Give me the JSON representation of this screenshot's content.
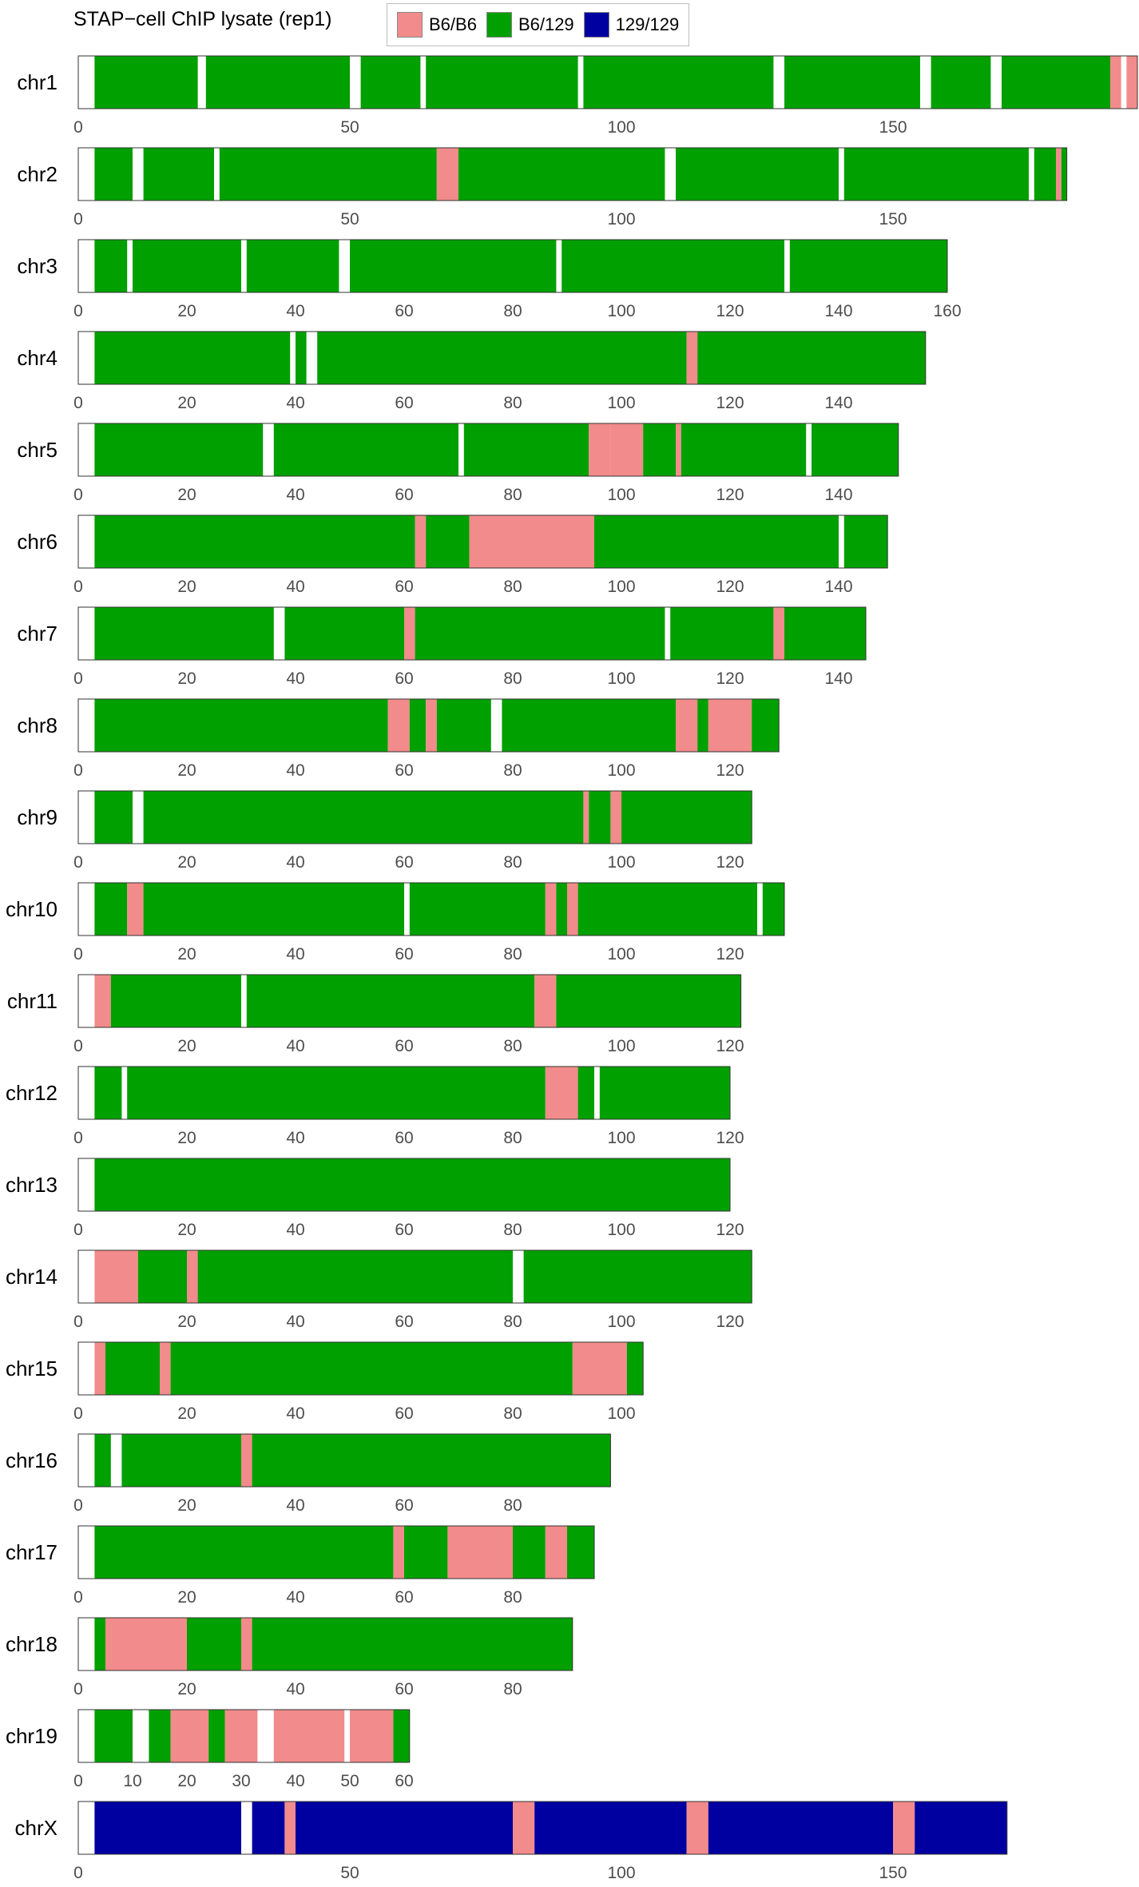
{
  "chart_data": {
    "type": "bar",
    "title": "STAP−cell ChIP lysate (rep1)",
    "legend": [
      {
        "name": "B6/B6",
        "color": "#f28b8b"
      },
      {
        "name": "B6/129",
        "color": "#00a000"
      },
      {
        "name": "129/129",
        "color": "#0000a0"
      }
    ],
    "chromosomes": [
      {
        "name": "chr1",
        "length": 195,
        "ticks": [
          0,
          50,
          100,
          150
        ],
        "segments": [
          [
            0,
            3,
            "none"
          ],
          [
            3,
            22,
            "green"
          ],
          [
            22,
            23.5,
            "none"
          ],
          [
            23.5,
            50,
            "green"
          ],
          [
            50,
            52,
            "none"
          ],
          [
            52,
            63,
            "green"
          ],
          [
            63,
            64,
            "none"
          ],
          [
            64,
            92,
            "green"
          ],
          [
            92,
            93,
            "none"
          ],
          [
            93,
            128,
            "green"
          ],
          [
            128,
            130,
            "none"
          ],
          [
            130,
            155,
            "green"
          ],
          [
            155,
            157,
            "none"
          ],
          [
            157,
            168,
            "green"
          ],
          [
            168,
            170,
            "none"
          ],
          [
            170,
            190,
            "green"
          ],
          [
            190,
            192,
            "pink"
          ],
          [
            192,
            193,
            "none"
          ],
          [
            193,
            195,
            "pink"
          ]
        ]
      },
      {
        "name": "chr2",
        "length": 182,
        "ticks": [
          0,
          50,
          100,
          150
        ],
        "segments": [
          [
            0,
            3,
            "none"
          ],
          [
            3,
            10,
            "green"
          ],
          [
            10,
            12,
            "none"
          ],
          [
            12,
            25,
            "green"
          ],
          [
            25,
            26,
            "none"
          ],
          [
            26,
            66,
            "green"
          ],
          [
            66,
            70,
            "pink"
          ],
          [
            70,
            108,
            "green"
          ],
          [
            108,
            110,
            "none"
          ],
          [
            110,
            140,
            "green"
          ],
          [
            140,
            141,
            "none"
          ],
          [
            141,
            175,
            "green"
          ],
          [
            175,
            176,
            "none"
          ],
          [
            176,
            180,
            "green"
          ],
          [
            180,
            181,
            "pink"
          ],
          [
            181,
            182,
            "green"
          ]
        ]
      },
      {
        "name": "chr3",
        "length": 160,
        "ticks": [
          0,
          20,
          40,
          60,
          80,
          100,
          120,
          140,
          160
        ],
        "segments": [
          [
            0,
            3,
            "none"
          ],
          [
            3,
            9,
            "green"
          ],
          [
            9,
            10,
            "none"
          ],
          [
            10,
            30,
            "green"
          ],
          [
            30,
            31,
            "none"
          ],
          [
            31,
            48,
            "green"
          ],
          [
            48,
            50,
            "none"
          ],
          [
            50,
            88,
            "green"
          ],
          [
            88,
            89,
            "none"
          ],
          [
            89,
            130,
            "green"
          ],
          [
            130,
            131,
            "none"
          ],
          [
            131,
            160,
            "green"
          ]
        ]
      },
      {
        "name": "chr4",
        "length": 156,
        "ticks": [
          0,
          20,
          40,
          60,
          80,
          100,
          120,
          140
        ],
        "segments": [
          [
            0,
            3,
            "none"
          ],
          [
            3,
            39,
            "green"
          ],
          [
            39,
            40,
            "none"
          ],
          [
            40,
            42,
            "green"
          ],
          [
            42,
            44,
            "none"
          ],
          [
            44,
            112,
            "green"
          ],
          [
            112,
            114,
            "pink"
          ],
          [
            114,
            156,
            "green"
          ]
        ]
      },
      {
        "name": "chr5",
        "length": 151,
        "ticks": [
          0,
          20,
          40,
          60,
          80,
          100,
          120,
          140
        ],
        "segments": [
          [
            0,
            3,
            "none"
          ],
          [
            3,
            34,
            "green"
          ],
          [
            34,
            36,
            "none"
          ],
          [
            36,
            70,
            "green"
          ],
          [
            70,
            71,
            "none"
          ],
          [
            71,
            94,
            "green"
          ],
          [
            94,
            98,
            "pink"
          ],
          [
            98,
            104,
            "pink"
          ],
          [
            104,
            110,
            "green"
          ],
          [
            110,
            111,
            "pink"
          ],
          [
            111,
            134,
            "green"
          ],
          [
            134,
            135,
            "none"
          ],
          [
            135,
            151,
            "green"
          ]
        ]
      },
      {
        "name": "chr6",
        "length": 149,
        "ticks": [
          0,
          20,
          40,
          60,
          80,
          100,
          120,
          140
        ],
        "segments": [
          [
            0,
            3,
            "none"
          ],
          [
            3,
            62,
            "green"
          ],
          [
            62,
            64,
            "pink"
          ],
          [
            64,
            72,
            "green"
          ],
          [
            72,
            95,
            "pink"
          ],
          [
            95,
            140,
            "green"
          ],
          [
            140,
            141,
            "none"
          ],
          [
            141,
            149,
            "green"
          ]
        ]
      },
      {
        "name": "chr7",
        "length": 145,
        "ticks": [
          0,
          20,
          40,
          60,
          80,
          100,
          120,
          140
        ],
        "segments": [
          [
            0,
            3,
            "none"
          ],
          [
            3,
            36,
            "green"
          ],
          [
            36,
            38,
            "none"
          ],
          [
            38,
            60,
            "green"
          ],
          [
            60,
            62,
            "pink"
          ],
          [
            62,
            108,
            "green"
          ],
          [
            108,
            109,
            "none"
          ],
          [
            109,
            128,
            "green"
          ],
          [
            128,
            130,
            "pink"
          ],
          [
            130,
            145,
            "green"
          ]
        ]
      },
      {
        "name": "chr8",
        "length": 129,
        "ticks": [
          0,
          20,
          40,
          60,
          80,
          100,
          120
        ],
        "segments": [
          [
            0,
            3,
            "none"
          ],
          [
            3,
            57,
            "green"
          ],
          [
            57,
            61,
            "pink"
          ],
          [
            61,
            64,
            "green"
          ],
          [
            64,
            66,
            "pink"
          ],
          [
            66,
            76,
            "green"
          ],
          [
            76,
            78,
            "none"
          ],
          [
            78,
            110,
            "green"
          ],
          [
            110,
            114,
            "pink"
          ],
          [
            114,
            116,
            "green"
          ],
          [
            116,
            124,
            "pink"
          ],
          [
            124,
            129,
            "green"
          ]
        ]
      },
      {
        "name": "chr9",
        "length": 124,
        "ticks": [
          0,
          20,
          40,
          60,
          80,
          100,
          120
        ],
        "segments": [
          [
            0,
            3,
            "none"
          ],
          [
            3,
            10,
            "green"
          ],
          [
            10,
            12,
            "none"
          ],
          [
            12,
            93,
            "green"
          ],
          [
            93,
            94,
            "pink"
          ],
          [
            94,
            98,
            "green"
          ],
          [
            98,
            100,
            "pink"
          ],
          [
            100,
            124,
            "green"
          ]
        ]
      },
      {
        "name": "chr10",
        "length": 130,
        "ticks": [
          0,
          20,
          40,
          60,
          80,
          100,
          120
        ],
        "segments": [
          [
            0,
            3,
            "none"
          ],
          [
            3,
            9,
            "green"
          ],
          [
            9,
            12,
            "pink"
          ],
          [
            12,
            60,
            "green"
          ],
          [
            60,
            61,
            "none"
          ],
          [
            61,
            86,
            "green"
          ],
          [
            86,
            88,
            "pink"
          ],
          [
            88,
            90,
            "green"
          ],
          [
            90,
            92,
            "pink"
          ],
          [
            92,
            125,
            "green"
          ],
          [
            125,
            126,
            "none"
          ],
          [
            126,
            130,
            "green"
          ]
        ]
      },
      {
        "name": "chr11",
        "length": 122,
        "ticks": [
          0,
          20,
          40,
          60,
          80,
          100,
          120
        ],
        "segments": [
          [
            0,
            3,
            "none"
          ],
          [
            3,
            6,
            "pink"
          ],
          [
            6,
            30,
            "green"
          ],
          [
            30,
            31,
            "none"
          ],
          [
            31,
            84,
            "green"
          ],
          [
            84,
            88,
            "pink"
          ],
          [
            88,
            122,
            "green"
          ]
        ]
      },
      {
        "name": "chr12",
        "length": 120,
        "ticks": [
          0,
          20,
          40,
          60,
          80,
          100,
          120
        ],
        "segments": [
          [
            0,
            3,
            "none"
          ],
          [
            3,
            8,
            "green"
          ],
          [
            8,
            9,
            "none"
          ],
          [
            9,
            86,
            "green"
          ],
          [
            86,
            92,
            "pink"
          ],
          [
            92,
            95,
            "green"
          ],
          [
            95,
            96,
            "none"
          ],
          [
            96,
            120,
            "green"
          ]
        ]
      },
      {
        "name": "chr13",
        "length": 120,
        "ticks": [
          0,
          20,
          40,
          60,
          80,
          100,
          120
        ],
        "segments": [
          [
            0,
            3,
            "none"
          ],
          [
            3,
            120,
            "green"
          ]
        ]
      },
      {
        "name": "chr14",
        "length": 124,
        "ticks": [
          0,
          20,
          40,
          60,
          80,
          100,
          120
        ],
        "segments": [
          [
            0,
            3,
            "none"
          ],
          [
            3,
            11,
            "pink"
          ],
          [
            11,
            20,
            "green"
          ],
          [
            20,
            22,
            "pink"
          ],
          [
            22,
            80,
            "green"
          ],
          [
            80,
            82,
            "none"
          ],
          [
            82,
            124,
            "green"
          ]
        ]
      },
      {
        "name": "chr15",
        "length": 104,
        "ticks": [
          0,
          20,
          40,
          60,
          80,
          100
        ],
        "segments": [
          [
            0,
            3,
            "none"
          ],
          [
            3,
            5,
            "pink"
          ],
          [
            5,
            15,
            "green"
          ],
          [
            15,
            17,
            "pink"
          ],
          [
            17,
            91,
            "green"
          ],
          [
            91,
            101,
            "pink"
          ],
          [
            101,
            104,
            "green"
          ]
        ]
      },
      {
        "name": "chr16",
        "length": 98,
        "ticks": [
          0,
          20,
          40,
          60,
          80
        ],
        "segments": [
          [
            0,
            3,
            "none"
          ],
          [
            3,
            6,
            "green"
          ],
          [
            6,
            8,
            "none"
          ],
          [
            8,
            30,
            "green"
          ],
          [
            30,
            32,
            "pink"
          ],
          [
            32,
            98,
            "green"
          ]
        ]
      },
      {
        "name": "chr17",
        "length": 95,
        "ticks": [
          0,
          20,
          40,
          60,
          80
        ],
        "segments": [
          [
            0,
            3,
            "none"
          ],
          [
            3,
            58,
            "green"
          ],
          [
            58,
            60,
            "pink"
          ],
          [
            60,
            68,
            "green"
          ],
          [
            68,
            80,
            "pink"
          ],
          [
            80,
            86,
            "green"
          ],
          [
            86,
            90,
            "pink"
          ],
          [
            90,
            95,
            "green"
          ]
        ]
      },
      {
        "name": "chr18",
        "length": 91,
        "ticks": [
          0,
          20,
          40,
          60,
          80
        ],
        "segments": [
          [
            0,
            3,
            "none"
          ],
          [
            3,
            5,
            "green"
          ],
          [
            5,
            20,
            "pink"
          ],
          [
            20,
            30,
            "green"
          ],
          [
            30,
            32,
            "pink"
          ],
          [
            32,
            91,
            "green"
          ]
        ]
      },
      {
        "name": "chr19",
        "length": 61,
        "ticks": [
          0,
          10,
          20,
          30,
          40,
          50,
          60
        ],
        "segments": [
          [
            0,
            3,
            "none"
          ],
          [
            3,
            10,
            "green"
          ],
          [
            10,
            13,
            "none"
          ],
          [
            13,
            17,
            "green"
          ],
          [
            17,
            24,
            "pink"
          ],
          [
            24,
            27,
            "green"
          ],
          [
            27,
            33,
            "pink"
          ],
          [
            33,
            36,
            "none"
          ],
          [
            36,
            49,
            "pink"
          ],
          [
            49,
            50,
            "none"
          ],
          [
            50,
            58,
            "pink"
          ],
          [
            58,
            61,
            "green"
          ]
        ]
      },
      {
        "name": "chrX",
        "length": 171,
        "ticks": [
          0,
          50,
          100,
          150
        ],
        "segments": [
          [
            0,
            3,
            "none"
          ],
          [
            3,
            30,
            "blue"
          ],
          [
            30,
            32,
            "none"
          ],
          [
            32,
            38,
            "blue"
          ],
          [
            38,
            40,
            "pink"
          ],
          [
            40,
            80,
            "blue"
          ],
          [
            80,
            84,
            "pink"
          ],
          [
            84,
            112,
            "blue"
          ],
          [
            112,
            116,
            "pink"
          ],
          [
            116,
            150,
            "blue"
          ],
          [
            150,
            154,
            "pink"
          ],
          [
            154,
            171,
            "blue"
          ]
        ]
      }
    ]
  }
}
